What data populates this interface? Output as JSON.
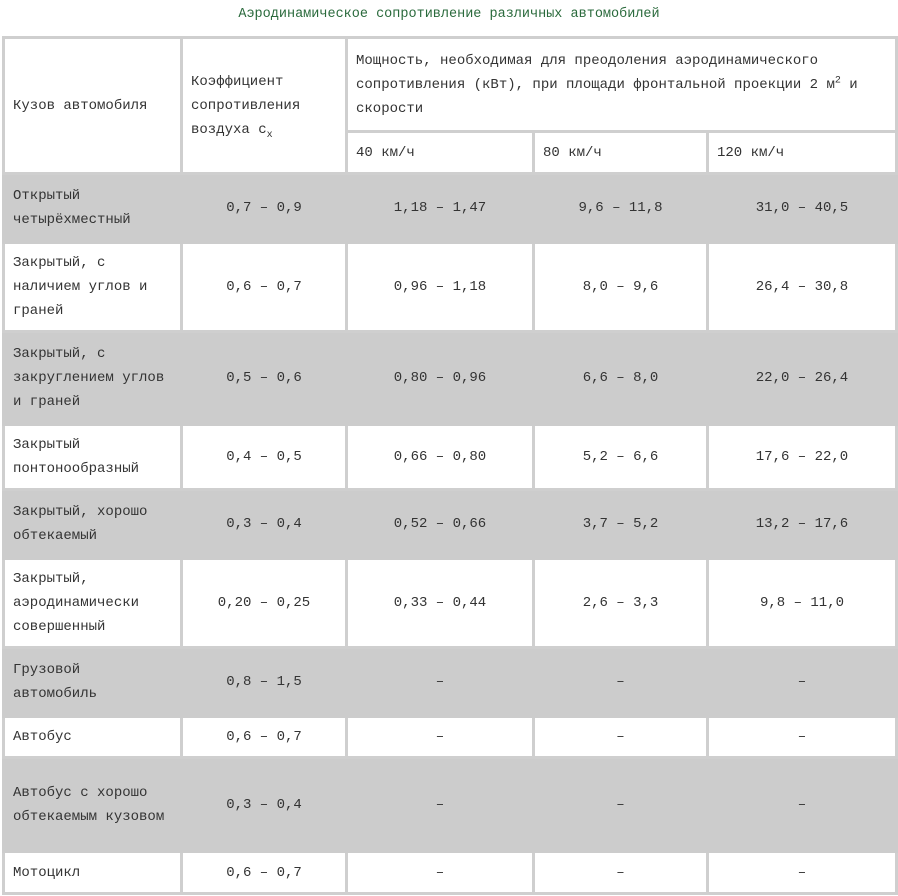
{
  "title": "Аэродинамическое сопротивление различных автомобилей",
  "header": {
    "body_type": "Кузов автомобиля",
    "cx_text": "Коэффициент сопротивления воздуха c",
    "cx_sub": "x",
    "power_text": "Мощность, необходимая для преодоления аэродинамического сопротивления (кВт), при площади фронтальной проекции 2 м",
    "power_sup": "2",
    "power_tail": " и скорости",
    "speeds": [
      "40 км/ч",
      "80 км/ч",
      "120 км/ч"
    ]
  },
  "colors": {
    "shade": "#cccccc",
    "border": "#cfcfcf",
    "title": "#2a6a3c"
  },
  "rows": [
    {
      "body": "Открытый четырёхместный",
      "cx": "0,7 – 0,9",
      "p40": "1,18 – 1,47",
      "p80": "9,6 – 11,8",
      "p120": "31,0 – 40,5"
    },
    {
      "body": "Закрытый, с наличием углов и граней",
      "cx": "0,6 – 0,7",
      "p40": "0,96 – 1,18",
      "p80": "8,0 – 9,6",
      "p120": "26,4 – 30,8"
    },
    {
      "body": "Закрытый, с закруглением углов и граней",
      "cx": "0,5 – 0,6",
      "p40": "0,80 – 0,96",
      "p80": "6,6 – 8,0",
      "p120": "22,0 – 26,4"
    },
    {
      "body": "Закрытый понтонообразный",
      "cx": "0,4 – 0,5",
      "p40": "0,66 – 0,80",
      "p80": "5,2 – 6,6",
      "p120": "17,6 – 22,0"
    },
    {
      "body": "Закрытый, хорошо обтекаемый",
      "cx": "0,3 – 0,4",
      "p40": "0,52 – 0,66",
      "p80": "3,7 – 5,2",
      "p120": "13,2 – 17,6"
    },
    {
      "body": "Закрытый, аэродинамически совершенный",
      "cx": "0,20 – 0,25",
      "p40": "0,33 – 0,44",
      "p80": "2,6 – 3,3",
      "p120": "9,8 – 11,0"
    },
    {
      "body": "Грузовой автомобиль",
      "cx": "0,8 – 1,5",
      "p40": "–",
      "p80": "–",
      "p120": "–"
    },
    {
      "body": "Автобус",
      "cx": "0,6 – 0,7",
      "p40": "–",
      "p80": "–",
      "p120": "–"
    },
    {
      "body": "Автобус с хорошо обтекаемым кузовом",
      "cx": "0,3 – 0,4",
      "p40": "–",
      "p80": "–",
      "p120": "–"
    },
    {
      "body": "Мотоцикл",
      "cx": "0,6 – 0,7",
      "p40": "–",
      "p80": "–",
      "p120": "–"
    }
  ]
}
